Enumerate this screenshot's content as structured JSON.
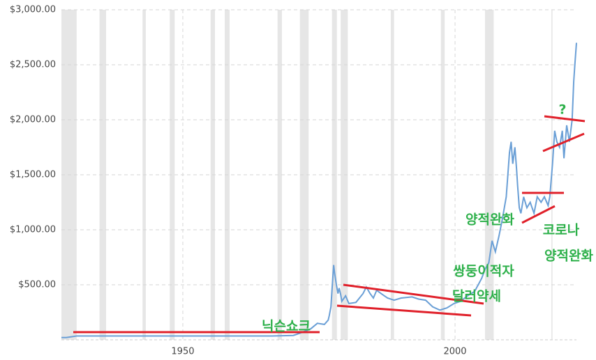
{
  "chart_data": {
    "type": "line",
    "x": [
      1927.7,
      1928.6,
      1930.5,
      1966.4,
      1970.3,
      1971.5,
      1973.5,
      1974.7,
      1976.0,
      1976.7,
      1976.9,
      1977.2,
      1977.4,
      1977.7,
      1977.9,
      1978.2,
      1978.5,
      1978.7,
      1979.0,
      1979.2,
      1979.9,
      1980.5,
      1981.8,
      1983.1,
      1983.7,
      1984.4,
      1985.0,
      1985.6,
      1986.7,
      1987.6,
      1988.8,
      1990.1,
      1992.1,
      1993.3,
      1994.6,
      1995.9,
      1997.2,
      1998.5,
      1999.8,
      2001.0,
      2002.3,
      2003.6,
      2004.9,
      2005.5,
      2006.2,
      2006.8,
      2007.4,
      2008.1,
      2008.7,
      2009.4,
      2009.7,
      2010.0,
      2010.3,
      2010.6,
      2011.0,
      2011.3,
      2011.5,
      2011.8,
      2012.1,
      2012.6,
      2013.2,
      2013.8,
      2014.5,
      2015.1,
      2015.8,
      2016.4,
      2017.1,
      2017.4,
      2017.9,
      2018.3,
      2018.7,
      2019.2,
      2019.7,
      2020.0,
      2020.5,
      2021.0,
      2021.5,
      2021.8,
      2022.0,
      2022.3
    ],
    "values": [
      20,
      20,
      35,
      35,
      40,
      60,
      100,
      150,
      140,
      180,
      220,
      300,
      450,
      680,
      600,
      500,
      420,
      470,
      410,
      350,
      400,
      330,
      340,
      420,
      480,
      420,
      380,
      450,
      410,
      380,
      360,
      380,
      390,
      370,
      360,
      300,
      270,
      290,
      330,
      350,
      400,
      440,
      560,
      640,
      700,
      900,
      800,
      950,
      1100,
      1300,
      1500,
      1700,
      1800,
      1600,
      1750,
      1550,
      1400,
      1200,
      1150,
      1300,
      1200,
      1250,
      1150,
      1300,
      1250,
      1300,
      1220,
      1300,
      1600,
      1900,
      1800,
      1750,
      1900,
      1650,
      1950,
      1800,
      2000,
      2350,
      2500,
      2700
    ],
    "color": "#6a9fd6",
    "xlim": [
      1927.7,
      2022.3
    ],
    "xticks": [
      1950,
      2000
    ],
    "ylim": [
      0,
      3000
    ],
    "yticks": [
      {
        "value": 500,
        "label": "$500.00"
      },
      {
        "value": 1000,
        "label": "$1,000.00"
      },
      {
        "value": 1500,
        "label": "$1,500.00"
      },
      {
        "value": 2000,
        "label": "$2,000.00"
      },
      {
        "value": 2500,
        "label": "$2,500.00"
      },
      {
        "value": 3000,
        "label": "$3,000.00"
      }
    ],
    "grid": true,
    "recessions": [
      [
        1927.7,
        1930.5
      ],
      [
        1934.7,
        1935.9
      ],
      [
        1942.6,
        1943.2
      ],
      [
        1947.6,
        1948.5
      ],
      [
        1955.1,
        1955.9
      ],
      [
        1957.7,
        1958.6
      ],
      [
        1967.4,
        1968.2
      ],
      [
        1971.5,
        1973.1
      ],
      [
        1977.4,
        1978.3
      ],
      [
        1979.0,
        1980.3
      ],
      [
        1988.2,
        1988.8
      ],
      [
        1997.4,
        1998.1
      ],
      [
        2005.5,
        2007.1
      ],
      [
        2017.7,
        2017.9
      ]
    ],
    "annotations": [
      "닉슨쇼크",
      "쌍둥이적자",
      "달러약세",
      "양적완화",
      "코로나",
      "양적완화",
      "?"
    ]
  }
}
